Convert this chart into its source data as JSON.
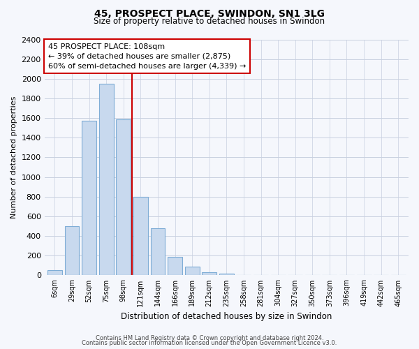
{
  "title": "45, PROSPECT PLACE, SWINDON, SN1 3LG",
  "subtitle": "Size of property relative to detached houses in Swindon",
  "xlabel": "Distribution of detached houses by size in Swindon",
  "ylabel": "Number of detached properties",
  "bar_labels": [
    "6sqm",
    "29sqm",
    "52sqm",
    "75sqm",
    "98sqm",
    "121sqm",
    "144sqm",
    "166sqm",
    "189sqm",
    "212sqm",
    "235sqm",
    "258sqm",
    "281sqm",
    "304sqm",
    "327sqm",
    "350sqm",
    "373sqm",
    "396sqm",
    "419sqm",
    "442sqm",
    "465sqm"
  ],
  "bar_values": [
    50,
    500,
    1575,
    1950,
    1590,
    800,
    480,
    190,
    90,
    30,
    15,
    5,
    2,
    1,
    0,
    0,
    0,
    0,
    0,
    0,
    0
  ],
  "bar_color": "#c8d9ee",
  "bar_edge_color": "#7fadd6",
  "vline_x": 4.5,
  "vline_color": "#cc0000",
  "annotation_title": "45 PROSPECT PLACE: 108sqm",
  "annotation_line1": "← 39% of detached houses are smaller (2,875)",
  "annotation_line2": "60% of semi-detached houses are larger (4,339) →",
  "annotation_box_color": "#ffffff",
  "annotation_box_edge": "#cc0000",
  "ylim": [
    0,
    2400
  ],
  "yticks": [
    0,
    200,
    400,
    600,
    800,
    1000,
    1200,
    1400,
    1600,
    1800,
    2000,
    2200,
    2400
  ],
  "footer1": "Contains HM Land Registry data © Crown copyright and database right 2024.",
  "footer2": "Contains public sector information licensed under the Open Government Licence v3.0.",
  "bg_color": "#f5f7fc",
  "grid_color": "#c8d0e0"
}
